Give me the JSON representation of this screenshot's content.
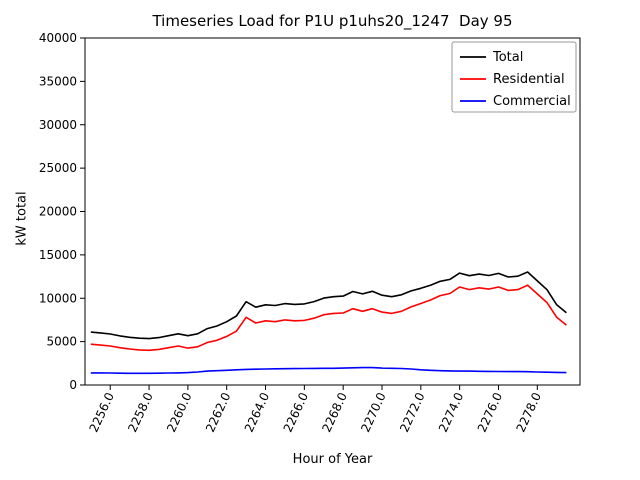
{
  "chart_data": {
    "type": "line",
    "title": "Timeseries Load for P1U p1uhs20_1247  Day 95",
    "xlabel": "Hour of Year",
    "ylabel": "kW total",
    "xlim": [
      2254.7,
      2280.2
    ],
    "ylim": [
      0,
      40000
    ],
    "grid": false,
    "legend_position": "upper right",
    "y_tick_values": [
      0,
      5000,
      10000,
      15000,
      20000,
      25000,
      30000,
      35000,
      40000
    ],
    "y_tick_labels": [
      "0",
      "5000",
      "10000",
      "15000",
      "20000",
      "25000",
      "30000",
      "35000",
      "40000"
    ],
    "x_tick_values": [
      2256,
      2258,
      2260,
      2262,
      2264,
      2266,
      2268,
      2270,
      2272,
      2274,
      2276,
      2278
    ],
    "x_tick_labels": [
      "2256.0",
      "2258.0",
      "2260.0",
      "2262.0",
      "2264.0",
      "2266.0",
      "2268.0",
      "2270.0",
      "2272.0",
      "2274.0",
      "2276.0",
      "2278.0"
    ],
    "x": [
      2255.0,
      2255.5,
      2256.0,
      2256.5,
      2257.0,
      2257.5,
      2258.0,
      2258.5,
      2259.0,
      2259.5,
      2260.0,
      2260.5,
      2261.0,
      2261.5,
      2262.0,
      2262.5,
      2263.0,
      2263.5,
      2264.0,
      2264.5,
      2265.0,
      2265.5,
      2266.0,
      2266.5,
      2267.0,
      2267.5,
      2268.0,
      2268.5,
      2269.0,
      2269.5,
      2270.0,
      2270.5,
      2271.0,
      2271.5,
      2272.0,
      2272.5,
      2273.0,
      2273.5,
      2274.0,
      2274.5,
      2275.0,
      2275.5,
      2276.0,
      2276.5,
      2277.0,
      2277.5,
      2278.0,
      2278.5,
      2279.0,
      2279.5
    ],
    "series": [
      {
        "name": "Total",
        "color": "#000000",
        "values": [
          6100,
          6000,
          5880,
          5660,
          5500,
          5400,
          5350,
          5460,
          5680,
          5900,
          5680,
          5900,
          6500,
          6800,
          7300,
          7950,
          9600,
          8970,
          9250,
          9170,
          9380,
          9290,
          9350,
          9610,
          10020,
          10180,
          10250,
          10780,
          10500,
          10800,
          10350,
          10180,
          10400,
          10850,
          11150,
          11500,
          11950,
          12170,
          12900,
          12600,
          12780,
          12620,
          12860,
          12450,
          12540,
          13030,
          12000,
          10980,
          9250,
          8330
        ]
      },
      {
        "name": "Residential",
        "color": "#ff0000",
        "values": [
          4700,
          4600,
          4500,
          4300,
          4150,
          4050,
          4000,
          4100,
          4300,
          4500,
          4250,
          4400,
          4900,
          5150,
          5600,
          6200,
          7800,
          7150,
          7400,
          7300,
          7500,
          7400,
          7450,
          7700,
          8100,
          8250,
          8300,
          8800,
          8500,
          8800,
          8400,
          8250,
          8500,
          9000,
          9400,
          9800,
          10300,
          10550,
          11300,
          11000,
          11200,
          11050,
          11300,
          10900,
          11000,
          11500,
          10500,
          9500,
          7800,
          6900
        ]
      },
      {
        "name": "Commercial",
        "color": "#0000ff",
        "values": [
          1400,
          1400,
          1380,
          1360,
          1350,
          1350,
          1350,
          1360,
          1380,
          1400,
          1430,
          1500,
          1600,
          1650,
          1700,
          1750,
          1800,
          1820,
          1850,
          1870,
          1880,
          1890,
          1900,
          1910,
          1920,
          1930,
          1950,
          1980,
          2000,
          2000,
          1950,
          1930,
          1900,
          1850,
          1750,
          1700,
          1650,
          1620,
          1600,
          1600,
          1580,
          1570,
          1560,
          1550,
          1540,
          1530,
          1500,
          1480,
          1450,
          1430
        ]
      }
    ]
  }
}
